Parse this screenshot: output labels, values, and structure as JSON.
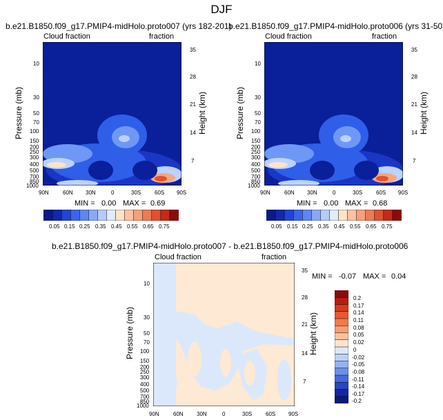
{
  "page_title": "DJF",
  "colors": {
    "low": "#0a1f9a",
    "mid_blue": "#2f5ee8",
    "light_blue": "#bcd2ff",
    "cream": "#fde4c8",
    "salmon": "#f6a77d",
    "orange_red": "#e4532b",
    "dark_red": "#8c0a0a",
    "diff_pale_blue": "#dbe8fb",
    "diff_pale_orange": "#fde9d4"
  },
  "chart_data": [
    {
      "type": "heatmap",
      "title": "b.e21.B1850.f09_g17.PMIP4-midHolo.proto007 (yrs 182-201)",
      "left_label": "Cloud fraction",
      "right_label": "fraction",
      "ylabel": "Pressure (mb)",
      "y2label": "Height (km)",
      "x_ticks": [
        "90N",
        "60N",
        "30N",
        "0",
        "30S",
        "60S",
        "90S"
      ],
      "y_ticks": [
        "10",
        "30",
        "50",
        "70",
        "100",
        "150",
        "200",
        "250",
        "300",
        "400",
        "500",
        "700",
        "850",
        "1000"
      ],
      "height_ticks": [
        "35",
        "28",
        "21",
        "14",
        "7"
      ],
      "stats": {
        "min_label": "MIN =",
        "min": "0.00",
        "max_label": "MAX =",
        "max": "0.69"
      },
      "colorbar_labels": [
        "0.05",
        "0.15",
        "0.25",
        "0.35",
        "0.45",
        "0.55",
        "0.65",
        "0.75"
      ]
    },
    {
      "type": "heatmap",
      "title": "b.e21.B1850.f09_g17.PMIP4-midHolo.proto006 (yrs 31-50)",
      "left_label": "Cloud fraction",
      "right_label": "fraction",
      "ylabel": "Pressure (mb)",
      "y2label": "Height (km)",
      "x_ticks": [
        "90N",
        "60N",
        "30N",
        "0",
        "30S",
        "60S",
        "90S"
      ],
      "y_ticks": [
        "10",
        "30",
        "50",
        "70",
        "100",
        "150",
        "200",
        "250",
        "300",
        "400",
        "500",
        "700",
        "850",
        "1000"
      ],
      "height_ticks": [
        "35",
        "28",
        "21",
        "14",
        "7"
      ],
      "stats": {
        "min_label": "MIN =",
        "min": "0.00",
        "max_label": "MAX =",
        "max": "0.68"
      },
      "colorbar_labels": [
        "0.05",
        "0.15",
        "0.25",
        "0.35",
        "0.45",
        "0.55",
        "0.65",
        "0.75"
      ]
    },
    {
      "type": "heatmap",
      "title": "b.e21.B1850.f09_g17.PMIP4-midHolo.proto007 - b.e21.B1850.f09_g17.PMIP4-midHolo.proto006",
      "left_label": "Cloud fraction",
      "right_label": "fraction",
      "ylabel": "Pressure (mb)",
      "y2label": "Height (km)",
      "x_ticks": [
        "90N",
        "60N",
        "30N",
        "0",
        "30S",
        "60S",
        "90S"
      ],
      "y_ticks": [
        "10",
        "30",
        "50",
        "70",
        "100",
        "150",
        "200",
        "250",
        "300",
        "400",
        "500",
        "700",
        "850",
        "1000"
      ],
      "height_ticks": [
        "35",
        "28",
        "21",
        "14",
        "7"
      ],
      "stats": {
        "min_label": "MIN =",
        "min": "-0.07",
        "max_label": "MAX =",
        "max": "0.04"
      },
      "colorbar_labels": [
        "0.2",
        "0.17",
        "0.14",
        "0.11",
        "0.08",
        "0.05",
        "0.02",
        "0",
        "-0.02",
        "-0.05",
        "-0.08",
        "-0.11",
        "-0.14",
        "-0.17",
        "-0.2"
      ]
    }
  ]
}
